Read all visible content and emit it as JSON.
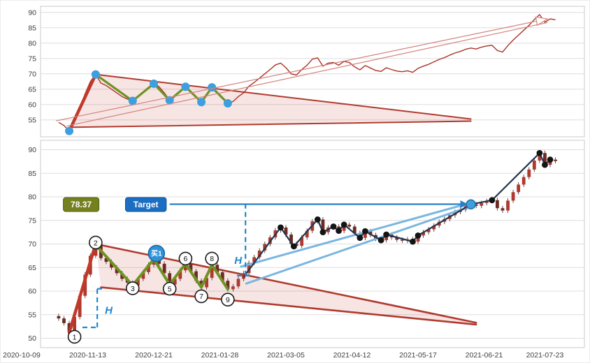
{
  "page": {
    "background": "#ffffff"
  },
  "colors": {
    "grid": "#dddddd",
    "panel_border": "#c9c9c9",
    "axis_text": "#404040",
    "series_red": "#a93226",
    "candle_up": "#b0392f",
    "candle_down": "#6d2b24",
    "wick": "#4a3b38",
    "zigzag_green": "#6f9224",
    "impulse_red": "#c0392b",
    "wedge_line": "#b03a2e",
    "wedge_fill": "rgba(192,57,43,0.13)",
    "forecast_pink": "#d4837f",
    "navy": "#24354d",
    "swing_dot": "#141414",
    "blue_line": "#7ab6e0",
    "blue_accent": "#1e88d2",
    "pivot_dot": "#3d9fdd",
    "target_dot": "#3d9fdd",
    "badge_price_bg": "#75801f",
    "badge_price_border": "#55600f",
    "badge_target_bg": "#1b6ec2",
    "badge_target_border": "#0d4f95",
    "buy_bg": "#2f92d5",
    "buy_border": "#1565a9"
  },
  "x_axis": {
    "tick_indices": [
      0,
      25,
      50,
      75,
      100,
      125,
      150,
      175,
      198
    ],
    "tick_labels": [
      "2020-10-09",
      "2020-11-13",
      "2020-12-21",
      "2021-01-28",
      "2021-03-05",
      "2021-04-12",
      "2021-05-17",
      "2021-06-21",
      "2021-07-23"
    ]
  },
  "chart_data": [
    {
      "type": "line",
      "panel": "top",
      "title": "",
      "ylim": [
        49.5,
        92
      ],
      "yticks": [
        55,
        60,
        65,
        70,
        75,
        80,
        85,
        90
      ],
      "x_start": 14,
      "x_step": 2,
      "values": [
        54.2,
        53.2,
        51.4,
        54.5,
        59.0,
        63.5,
        67.5,
        69.8,
        67.0,
        66.2,
        65.0,
        63.8,
        62.6,
        61.8,
        61.2,
        62.6,
        64.0,
        65.6,
        66.8,
        65.8,
        63.8,
        61.4,
        62.6,
        64.4,
        65.8,
        64.2,
        62.2,
        60.8,
        62.8,
        65.6,
        64.0,
        62.2,
        60.4,
        61.0,
        62.6,
        63.8,
        66.0,
        67.2,
        68.6,
        70.0,
        71.4,
        72.9,
        73.5,
        72.0,
        70.0,
        69.6,
        71.4,
        72.8,
        74.8,
        75.2,
        72.5,
        73.5,
        73.7,
        72.8,
        74.1,
        73.7,
        72.3,
        71.3,
        72.7,
        71.9,
        71.1,
        70.8,
        72.0,
        71.4,
        70.9,
        70.7,
        71.0,
        70.5,
        71.8,
        72.5,
        73.1,
        73.9,
        74.7,
        75.3,
        76.1,
        76.8,
        77.3,
        78.0,
        78.4,
        78.1,
        78.7,
        79.1,
        79.3,
        77.6,
        77.1,
        79.2,
        81.0,
        82.6,
        84.2,
        85.8,
        87.7,
        89.3,
        86.8,
        87.9,
        87.6
      ],
      "pivot_dots": [
        [
          18,
          51.4
        ],
        [
          28,
          69.8
        ],
        [
          42,
          61.2
        ],
        [
          50,
          66.8
        ],
        [
          56,
          61.4
        ],
        [
          62,
          65.8
        ],
        [
          68,
          60.8
        ],
        [
          72,
          65.6
        ],
        [
          78,
          60.4
        ]
      ],
      "green_zigzag": [
        [
          28,
          69.8
        ],
        [
          42,
          61.2
        ],
        [
          50,
          66.8
        ],
        [
          56,
          61.4
        ],
        [
          62,
          65.8
        ],
        [
          68,
          60.8
        ],
        [
          72,
          65.6
        ],
        [
          78,
          60.4
        ]
      ],
      "impulse_line": [
        [
          18,
          51.4
        ],
        [
          28,
          69.8
        ]
      ],
      "wedge": {
        "upper": [
          [
            28,
            69.8
          ],
          [
            170,
            55.3
          ]
        ],
        "lower": [
          [
            18,
            52.6
          ],
          [
            170,
            54.6
          ]
        ]
      },
      "forecast_arrow": {
        "line1": [
          [
            13,
            54.7
          ],
          [
            199,
            87.9
          ]
        ],
        "line2": [
          [
            17,
            53.0
          ],
          [
            199,
            86.7
          ]
        ]
      }
    },
    {
      "type": "candlestick",
      "panel": "bottom",
      "title": "",
      "ylim": [
        48,
        92
      ],
      "yticks": [
        50,
        55,
        60,
        65,
        70,
        75,
        80,
        85,
        90
      ],
      "x_start": 14,
      "x_step": 2,
      "values": [
        54.2,
        53.2,
        51.4,
        54.5,
        59.0,
        63.5,
        67.5,
        69.8,
        67.0,
        66.2,
        65.0,
        63.8,
        62.6,
        61.8,
        61.2,
        62.6,
        64.0,
        65.6,
        66.8,
        65.8,
        63.8,
        61.4,
        62.6,
        64.4,
        65.8,
        64.2,
        62.2,
        60.8,
        62.8,
        65.6,
        64.0,
        62.2,
        60.4,
        61.0,
        62.6,
        63.8,
        66.0,
        67.2,
        68.6,
        70.0,
        71.4,
        72.9,
        73.5,
        72.0,
        70.0,
        69.6,
        71.4,
        72.8,
        74.8,
        75.2,
        72.5,
        73.5,
        73.7,
        72.8,
        74.1,
        73.7,
        72.3,
        71.3,
        72.7,
        71.9,
        71.1,
        70.8,
        72.0,
        71.4,
        70.9,
        70.7,
        71.0,
        70.5,
        71.8,
        72.5,
        73.1,
        73.9,
        74.7,
        75.3,
        76.1,
        76.8,
        77.3,
        78.0,
        78.4,
        78.1,
        78.7,
        79.1,
        79.3,
        77.6,
        77.1,
        79.2,
        81.0,
        82.6,
        84.2,
        85.8,
        87.7,
        89.3,
        86.8,
        87.9,
        87.6
      ],
      "green_zigzag": [
        [
          28,
          69.8
        ],
        [
          42,
          61.2
        ],
        [
          50,
          66.8
        ],
        [
          56,
          61.4
        ],
        [
          62,
          65.8
        ],
        [
          68,
          60.8
        ],
        [
          72,
          65.6
        ],
        [
          78,
          60.4
        ]
      ],
      "impulse_line": [
        [
          18,
          51.2
        ],
        [
          28,
          70.0
        ]
      ],
      "wedge": {
        "upper": [
          [
            28,
            70.0
          ],
          [
            172,
            53.3
          ]
        ],
        "lower": [
          [
            30,
            60.8
          ],
          [
            172,
            52.9
          ]
        ]
      },
      "blue_trend_lines": [
        [
          [
            83,
            65.2
          ],
          [
            171,
            78.9
          ]
        ],
        [
          [
            85,
            61.6
          ],
          [
            171,
            78.2
          ]
        ]
      ],
      "navy_zigzag": [
        [
          84,
          63.0
        ],
        [
          98,
          73.5
        ],
        [
          103,
          69.5
        ],
        [
          112,
          75.2
        ],
        [
          114,
          72.5
        ],
        [
          118,
          73.7
        ],
        [
          120,
          72.8
        ],
        [
          122,
          74.1
        ],
        [
          128,
          71.3
        ],
        [
          130,
          72.7
        ],
        [
          136,
          70.8
        ],
        [
          138,
          72.0
        ],
        [
          148,
          70.5
        ],
        [
          150,
          71.8
        ],
        [
          170,
          78.4
        ],
        [
          178,
          79.3
        ],
        [
          196,
          89.3
        ],
        [
          198,
          86.8
        ],
        [
          200,
          87.9
        ]
      ],
      "swing_dots": [
        [
          98,
          73.5
        ],
        [
          103,
          69.5
        ],
        [
          112,
          75.2
        ],
        [
          114,
          72.5
        ],
        [
          118,
          73.7
        ],
        [
          120,
          72.8
        ],
        [
          122,
          74.1
        ],
        [
          128,
          71.3
        ],
        [
          130,
          72.7
        ],
        [
          136,
          70.8
        ],
        [
          138,
          72.0
        ],
        [
          148,
          70.5
        ],
        [
          150,
          71.8
        ],
        [
          178,
          79.3
        ],
        [
          196,
          89.3
        ],
        [
          198,
          86.8
        ],
        [
          200,
          87.9
        ]
      ],
      "target_dot": [
        170,
        78.4
      ],
      "dashed_lines": [
        [
          [
            28.6,
            52.3
          ],
          [
            28.6,
            60.5
          ]
        ],
        [
          [
            23.0,
            52.3
          ],
          [
            28.6,
            52.3
          ]
        ],
        [
          [
            28.6,
            60.5
          ],
          [
            31.5,
            60.5
          ]
        ],
        [
          [
            84.7,
            63.3
          ],
          [
            84.7,
            78.45
          ]
        ],
        [
          [
            81.5,
            63.3
          ],
          [
            87.5,
            63.3
          ]
        ]
      ],
      "h_labels": [
        {
          "text": "H",
          "x": 31.5,
          "price": 55.2
        },
        {
          "text": "H",
          "x": 80.5,
          "price": 65.8
        }
      ],
      "number_circles": [
        {
          "n": "1",
          "x": 20,
          "price": 50.3
        },
        {
          "n": "2",
          "x": 28,
          "price": 70.3
        },
        {
          "n": "3",
          "x": 42,
          "price": 60.6
        },
        {
          "n": "5",
          "x": 56,
          "price": 60.5
        },
        {
          "n": "6",
          "x": 62,
          "price": 66.9
        },
        {
          "n": "7",
          "x": 68,
          "price": 58.9
        },
        {
          "n": "8",
          "x": 72,
          "price": 66.9
        },
        {
          "n": "9",
          "x": 78,
          "price": 58.2
        }
      ],
      "buy_marker": {
        "text": "买1",
        "x": 51,
        "price": 68.0
      },
      "price_badge": {
        "text": "78.37",
        "x": 22.5,
        "price": 78.37
      },
      "target_badge": {
        "text": "Target",
        "x": 47,
        "price": 78.37
      },
      "target_arrow": {
        "price": 78.45,
        "x_from": 56,
        "x_to": 166
      }
    }
  ]
}
